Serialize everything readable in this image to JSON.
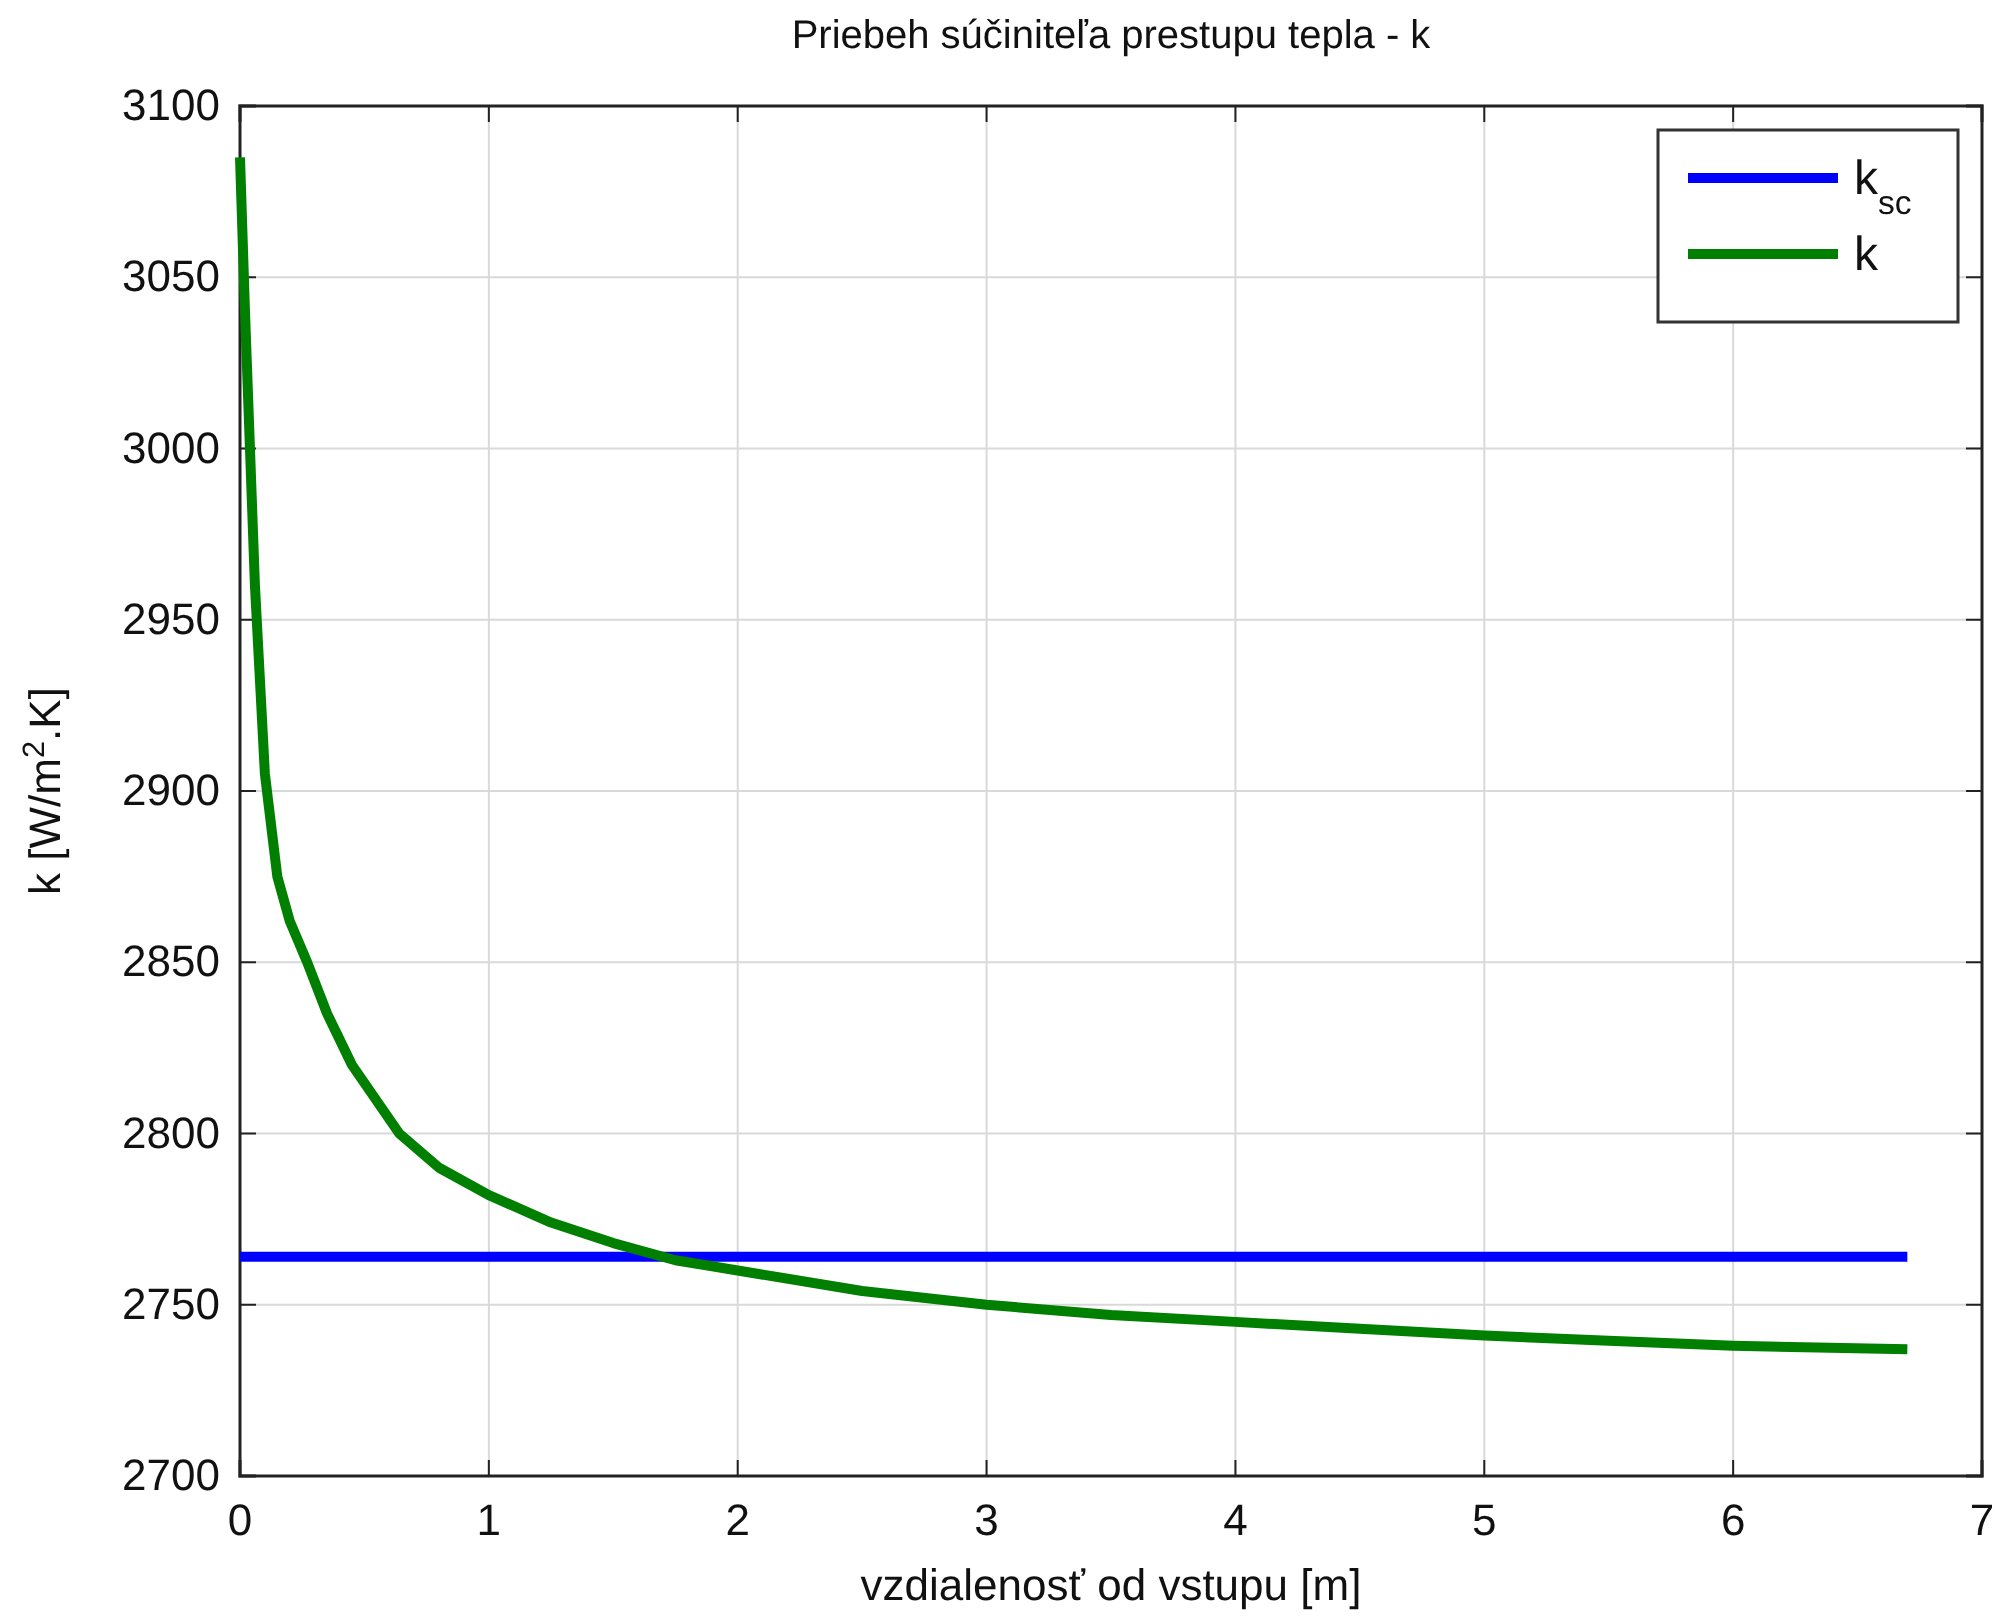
{
  "chart_data": {
    "type": "line",
    "title": "Priebeh súčiniteľa prestupu tepla - k",
    "xlabel": "vzdialenosť od vstupu [m]",
    "ylabel": "k [W/m$^{2}$.K]",
    "xlim": [
      0,
      7
    ],
    "xticks": [
      0,
      1,
      2,
      3,
      4,
      5,
      6,
      7
    ],
    "ylim": [
      2700,
      3100
    ],
    "yticks": [
      2700,
      2750,
      2800,
      2850,
      2900,
      2950,
      3000,
      3050,
      3100
    ],
    "grid": true,
    "legend": "top right",
    "line_style": "solid",
    "marker": "none",
    "series": [
      {
        "name": "k$_{sc}$",
        "color": "#0000ff",
        "x": [
          0,
          6.7
        ],
        "values": [
          2764,
          2764
        ]
      },
      {
        "name": "k",
        "color": "#007f00",
        "x": [
          0,
          0.02,
          0.04,
          0.06,
          0.1,
          0.15,
          0.2,
          0.27,
          0.35,
          0.45,
          0.64,
          0.8,
          1,
          1.25,
          1.5,
          1.75,
          2,
          2.5,
          3,
          3.5,
          4,
          4.5,
          5,
          5.5,
          6,
          6.7
        ],
        "values": [
          3085,
          3040,
          3000,
          2960,
          2905,
          2875,
          2862,
          2850,
          2835,
          2820,
          2800,
          2790,
          2782,
          2774,
          2768,
          2763,
          2760,
          2754,
          2750,
          2747,
          2745,
          2743,
          2741,
          2739.5,
          2738,
          2737
        ]
      }
    ]
  }
}
